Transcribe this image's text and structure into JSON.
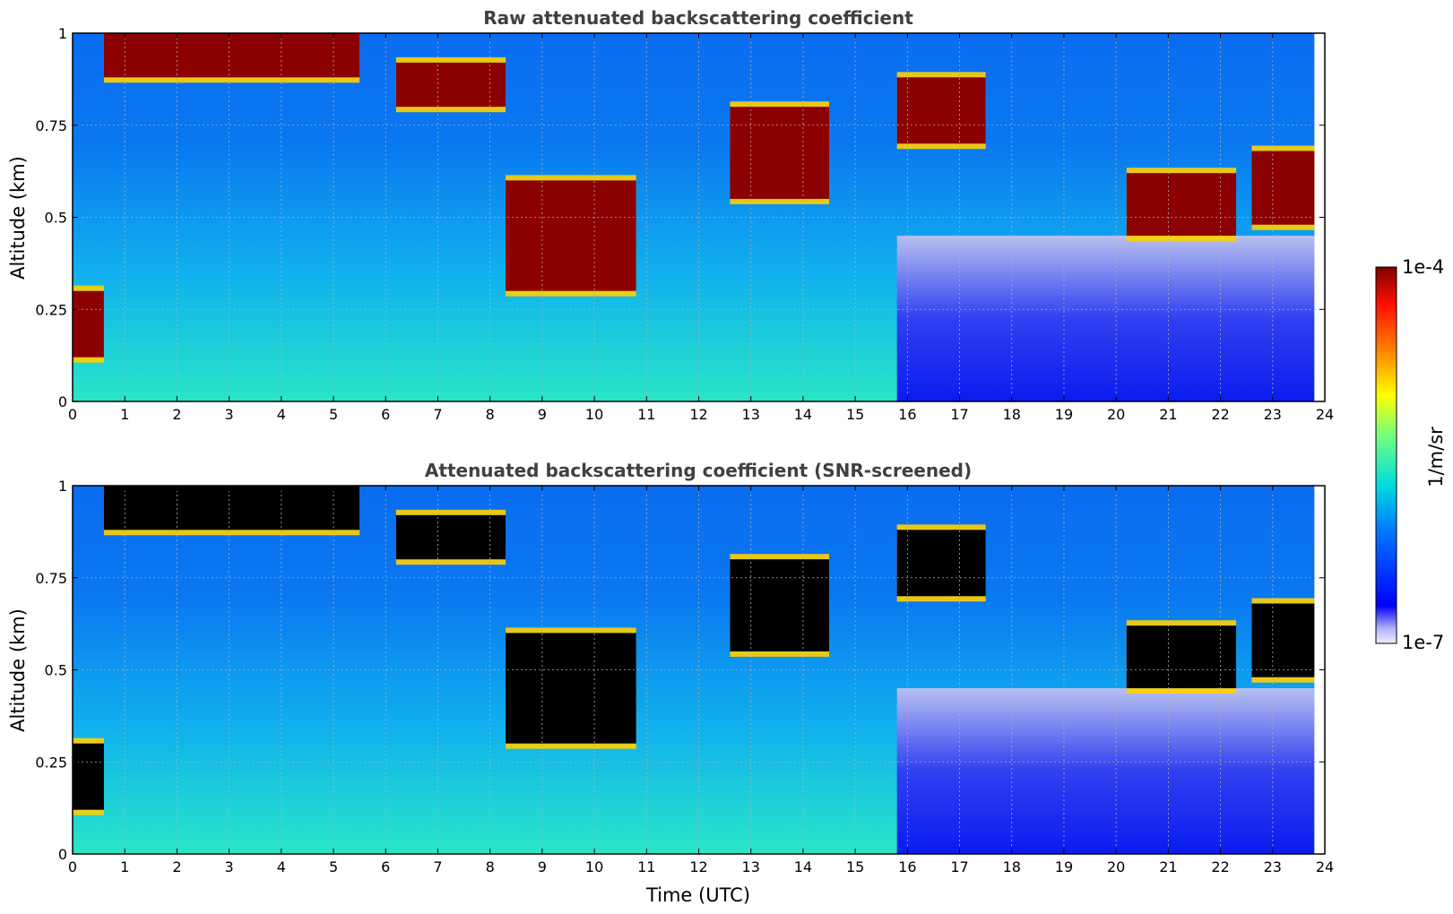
{
  "chart_data": [
    {
      "type": "heatmap",
      "title": "Raw attenuated backscattering coefficient",
      "xlabel": "",
      "ylabel": "Altitude (km)",
      "xlim": [
        0,
        24
      ],
      "ylim": [
        0,
        1
      ],
      "x_ticks": [
        "0",
        "1",
        "2",
        "3",
        "4",
        "5",
        "6",
        "7",
        "8",
        "9",
        "10",
        "11",
        "12",
        "13",
        "14",
        "15",
        "16",
        "17",
        "18",
        "19",
        "20",
        "21",
        "22",
        "23",
        "24"
      ],
      "y_ticks": [
        "0",
        "0.25",
        "0.5",
        "0.75",
        "1"
      ],
      "grid": true,
      "screened": false,
      "layers": [
        {
          "name": "cloud-layer-1",
          "time": [
            0,
            0.6
          ],
          "bottom": 0.12,
          "top": 0.3
        },
        {
          "name": "cloud-layer-2",
          "time": [
            0.6,
            5.5
          ],
          "bottom": 0.88,
          "top": 1.0
        },
        {
          "name": "cloud-layer-3",
          "time": [
            6.2,
            8.3
          ],
          "bottom": 0.8,
          "top": 0.92
        },
        {
          "name": "cloud-layer-4",
          "time": [
            8.3,
            10.8
          ],
          "bottom": 0.3,
          "top": 0.6
        },
        {
          "name": "cloud-layer-5",
          "time": [
            12.6,
            14.5
          ],
          "bottom": 0.55,
          "top": 0.8
        },
        {
          "name": "cloud-layer-6",
          "time": [
            15.8,
            17.5
          ],
          "bottom": 0.7,
          "top": 0.88
        },
        {
          "name": "cloud-layer-7",
          "time": [
            20.2,
            22.3
          ],
          "bottom": 0.45,
          "top": 0.62
        },
        {
          "name": "cloud-layer-8",
          "time": [
            22.6,
            23.8
          ],
          "bottom": 0.48,
          "top": 0.68
        }
      ]
    },
    {
      "type": "heatmap",
      "title": "Attenuated backscattering coefficient (SNR-screened)",
      "xlabel": "Time (UTC)",
      "ylabel": "Altitude (km)",
      "xlim": [
        0,
        24
      ],
      "ylim": [
        0,
        1
      ],
      "x_ticks": [
        "0",
        "1",
        "2",
        "3",
        "4",
        "5",
        "6",
        "7",
        "8",
        "9",
        "10",
        "11",
        "12",
        "13",
        "14",
        "15",
        "16",
        "17",
        "18",
        "19",
        "20",
        "21",
        "22",
        "23",
        "24"
      ],
      "y_ticks": [
        "0",
        "0.25",
        "0.5",
        "0.75",
        "1"
      ],
      "grid": true,
      "screened": true,
      "layers": [
        {
          "name": "cloud-layer-1",
          "time": [
            0,
            0.6
          ],
          "bottom": 0.12,
          "top": 0.3
        },
        {
          "name": "cloud-layer-2",
          "time": [
            0.6,
            5.5
          ],
          "bottom": 0.88,
          "top": 1.0
        },
        {
          "name": "cloud-layer-3",
          "time": [
            6.2,
            8.3
          ],
          "bottom": 0.8,
          "top": 0.92
        },
        {
          "name": "cloud-layer-4",
          "time": [
            8.3,
            10.8
          ],
          "bottom": 0.3,
          "top": 0.6
        },
        {
          "name": "cloud-layer-5",
          "time": [
            12.6,
            14.5
          ],
          "bottom": 0.55,
          "top": 0.8
        },
        {
          "name": "cloud-layer-6",
          "time": [
            15.8,
            17.5
          ],
          "bottom": 0.7,
          "top": 0.88
        },
        {
          "name": "cloud-layer-7",
          "time": [
            20.2,
            22.3
          ],
          "bottom": 0.45,
          "top": 0.62
        },
        {
          "name": "cloud-layer-8",
          "time": [
            22.6,
            23.8
          ],
          "bottom": 0.48,
          "top": 0.68
        }
      ]
    }
  ],
  "colorbar": {
    "min_label": "1e-7",
    "max_label": "1e-4",
    "label": "1/m/sr",
    "colormap": "jet",
    "scale": "log"
  },
  "colors": {
    "title": "#404040",
    "grid": "#b0b0b0",
    "screened_saturation": "#000000"
  }
}
